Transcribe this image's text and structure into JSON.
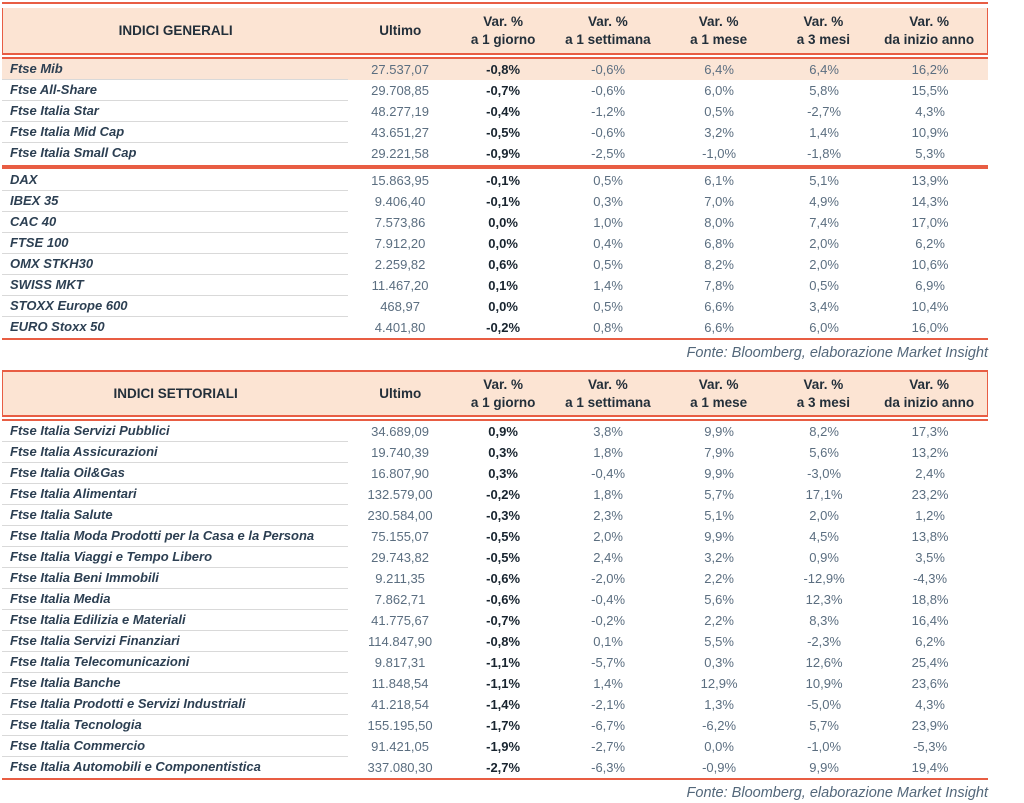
{
  "colors": {
    "rule_red": "#e85d43",
    "header_bg": "#fce4d3",
    "highlight_row_bg": "#fbe5d6",
    "row_divider": "#d9d9d9",
    "name_text": "#2c3f52",
    "value_text": "#5b6e80",
    "day_value_text": "#18242f",
    "header_text": "#232f3a",
    "source_text": "#53677a"
  },
  "column_headers": {
    "ultimo": "Ultimo",
    "var_label": "Var. %",
    "periods": [
      "a 1 giorno",
      "a 1 settimana",
      "a 1 mese",
      "a 3 mesi",
      "da inizio anno"
    ]
  },
  "source_note": "Fonte: Bloomberg, elaborazione Market Insight",
  "tables": [
    {
      "title": "INDICI GENERALI",
      "highlight_first_row": true,
      "groups": [
        {
          "rows": [
            [
              "Ftse Mib",
              "27.537,07",
              "-0,8%",
              "-0,6%",
              "6,4%",
              "6,4%",
              "16,2%"
            ],
            [
              "Ftse All-Share",
              "29.708,85",
              "-0,7%",
              "-0,6%",
              "6,0%",
              "5,8%",
              "15,5%"
            ],
            [
              "Ftse Italia Star",
              "48.277,19",
              "-0,4%",
              "-1,2%",
              "0,5%",
              "-2,7%",
              "4,3%"
            ],
            [
              "Ftse Italia Mid Cap",
              "43.651,27",
              "-0,5%",
              "-0,6%",
              "3,2%",
              "1,4%",
              "10,9%"
            ],
            [
              "Ftse Italia Small Cap",
              "29.221,58",
              "-0,9%",
              "-2,5%",
              "-1,0%",
              "-1,8%",
              "5,3%"
            ]
          ]
        },
        {
          "rows": [
            [
              "DAX",
              "15.863,95",
              "-0,1%",
              "0,5%",
              "6,1%",
              "5,1%",
              "13,9%"
            ],
            [
              "IBEX 35",
              "9.406,40",
              "-0,1%",
              "0,3%",
              "7,0%",
              "4,9%",
              "14,3%"
            ],
            [
              "CAC 40",
              "7.573,86",
              "0,0%",
              "1,0%",
              "8,0%",
              "7,4%",
              "17,0%"
            ],
            [
              "FTSE 100",
              "7.912,20",
              "0,0%",
              "0,4%",
              "6,8%",
              "2,0%",
              "6,2%"
            ],
            [
              "OMX STKH30",
              "2.259,82",
              "0,6%",
              "0,5%",
              "8,2%",
              "2,0%",
              "10,6%"
            ],
            [
              "SWISS MKT",
              "11.467,20",
              "0,1%",
              "1,4%",
              "7,8%",
              "0,5%",
              "6,9%"
            ],
            [
              "STOXX Europe 600",
              "468,97",
              "0,0%",
              "0,5%",
              "6,6%",
              "3,4%",
              "10,4%"
            ],
            [
              "EURO Stoxx 50",
              "4.401,80",
              "-0,2%",
              "0,8%",
              "6,6%",
              "6,0%",
              "16,0%"
            ]
          ]
        }
      ]
    },
    {
      "title": "INDICI SETTORIALI",
      "highlight_first_row": false,
      "groups": [
        {
          "rows": [
            [
              "Ftse Italia Servizi Pubblici",
              "34.689,09",
              "0,9%",
              "3,8%",
              "9,9%",
              "8,2%",
              "17,3%"
            ],
            [
              "Ftse Italia Assicurazioni",
              "19.740,39",
              "0,3%",
              "1,8%",
              "7,9%",
              "5,6%",
              "13,2%"
            ],
            [
              "Ftse Italia Oil&Gas",
              "16.807,90",
              "0,3%",
              "-0,4%",
              "9,9%",
              "-3,0%",
              "2,4%"
            ],
            [
              "Ftse Italia Alimentari",
              "132.579,00",
              "-0,2%",
              "1,8%",
              "5,7%",
              "17,1%",
              "23,2%"
            ],
            [
              "Ftse Italia Salute",
              "230.584,00",
              "-0,3%",
              "2,3%",
              "5,1%",
              "2,0%",
              "1,2%"
            ],
            [
              "Ftse Italia Moda Prodotti per la Casa e la Persona",
              "75.155,07",
              "-0,5%",
              "2,0%",
              "9,9%",
              "4,5%",
              "13,8%"
            ],
            [
              "Ftse Italia Viaggi e Tempo Libero",
              "29.743,82",
              "-0,5%",
              "2,4%",
              "3,2%",
              "0,9%",
              "3,5%"
            ],
            [
              "Ftse Italia Beni Immobili",
              "9.211,35",
              "-0,6%",
              "-2,0%",
              "2,2%",
              "-12,9%",
              "-4,3%"
            ],
            [
              "Ftse Italia Media",
              "7.862,71",
              "-0,6%",
              "-0,4%",
              "5,6%",
              "12,3%",
              "18,8%"
            ],
            [
              "Ftse Italia Edilizia e Materiali",
              "41.775,67",
              "-0,7%",
              "-0,2%",
              "2,2%",
              "8,3%",
              "16,4%"
            ],
            [
              "Ftse Italia Servizi Finanziari",
              "114.847,90",
              "-0,8%",
              "0,1%",
              "5,5%",
              "-2,3%",
              "6,2%"
            ],
            [
              "Ftse Italia Telecomunicazioni",
              "9.817,31",
              "-1,1%",
              "-5,7%",
              "0,3%",
              "12,6%",
              "25,4%"
            ],
            [
              "Ftse Italia Banche",
              "11.848,54",
              "-1,1%",
              "1,4%",
              "12,9%",
              "10,9%",
              "23,6%"
            ],
            [
              "Ftse Italia Prodotti e Servizi Industriali",
              "41.218,54",
              "-1,4%",
              "-2,1%",
              "1,3%",
              "-5,0%",
              "4,3%"
            ],
            [
              "Ftse Italia Tecnologia",
              "155.195,50",
              "-1,7%",
              "-6,7%",
              "-6,2%",
              "5,7%",
              "23,9%"
            ],
            [
              "Ftse Italia Commercio",
              "91.421,05",
              "-1,9%",
              "-2,7%",
              "0,0%",
              "-1,0%",
              "-5,3%"
            ],
            [
              "Ftse Italia Automobili e Componentistica",
              "337.080,30",
              "-2,7%",
              "-6,3%",
              "-0,9%",
              "9,9%",
              "19,4%"
            ]
          ]
        }
      ]
    }
  ]
}
